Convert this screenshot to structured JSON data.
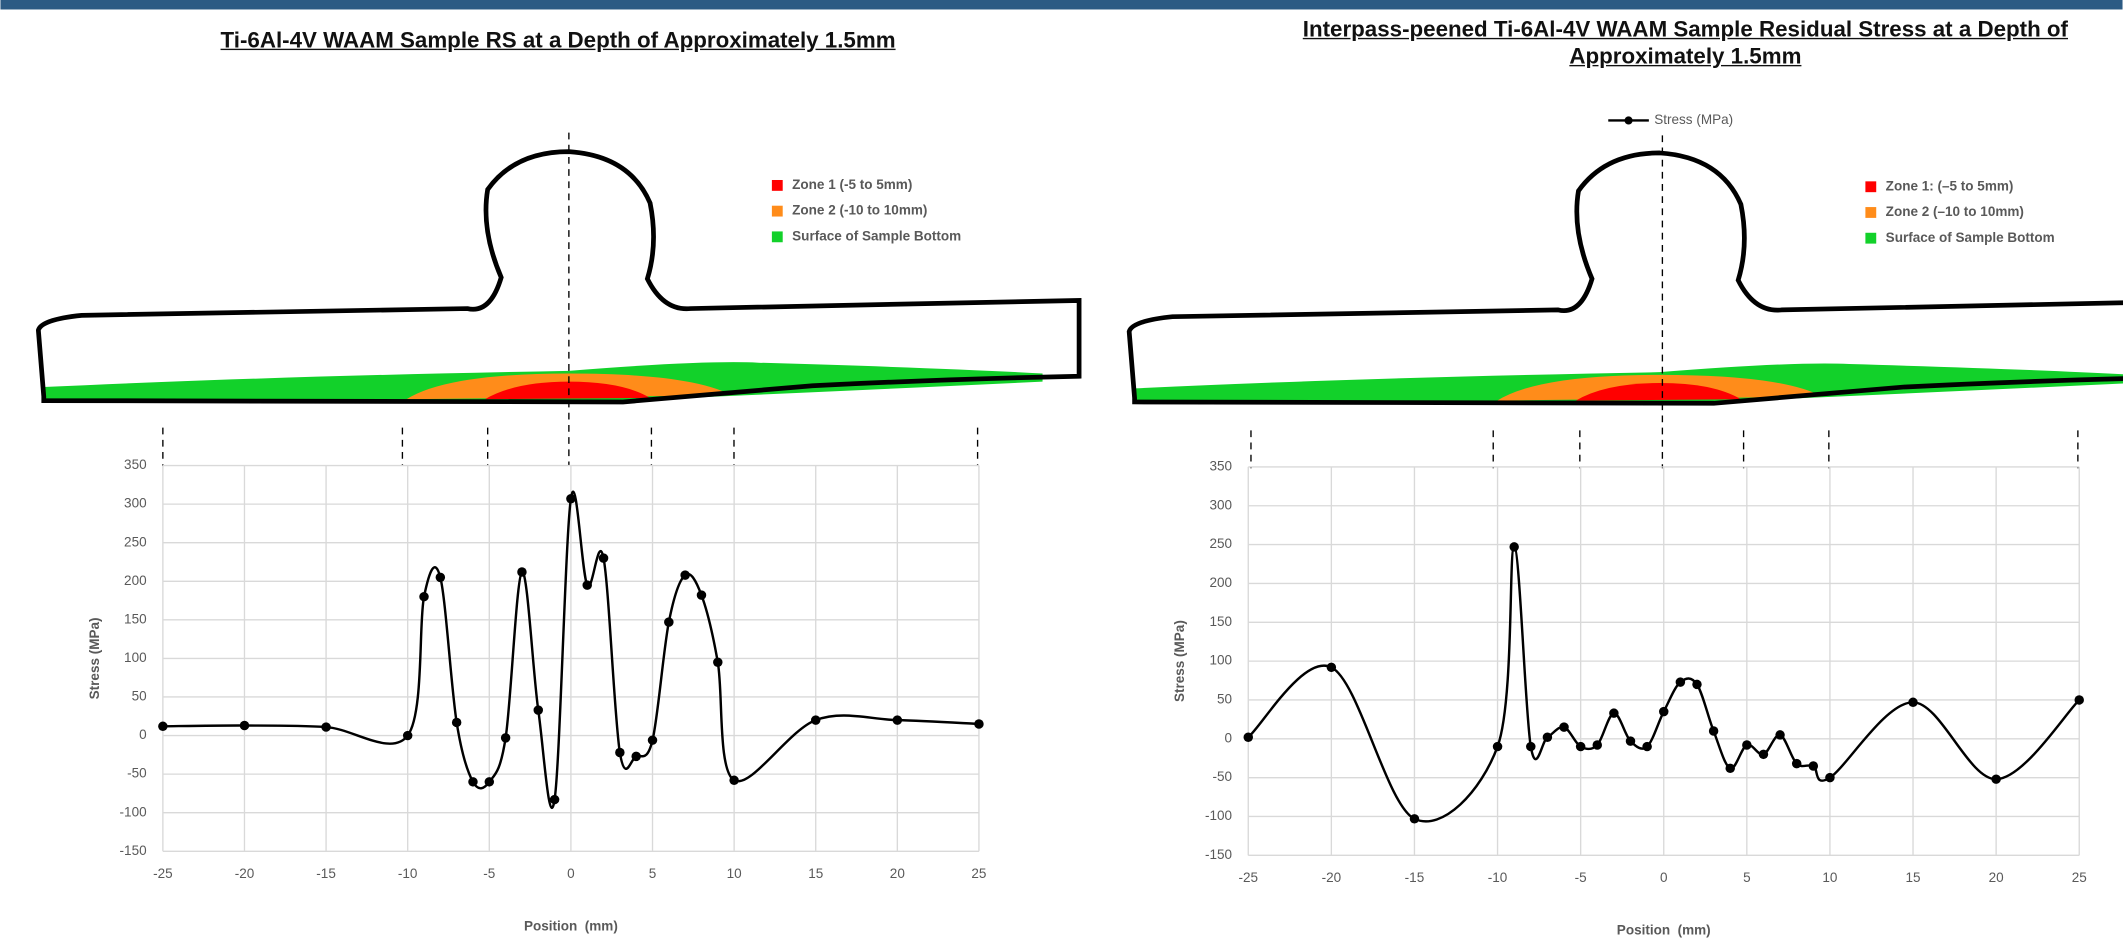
{
  "chart_data": [
    {
      "type": "line",
      "title": "Ti-6Al-4V WAAM Sample RS at a Depth of Approximately 1.5mm",
      "x_label": "Position  (mm)",
      "y_label": "Stress (MPa)",
      "x": [
        -25,
        -20,
        -15,
        -10,
        -9,
        -8,
        -7,
        -6,
        -5,
        -4,
        -3,
        -2,
        -1,
        0,
        1,
        2,
        3,
        4,
        5,
        6,
        7,
        8,
        9,
        10,
        15,
        20,
        25
      ],
      "values": [
        12,
        13,
        11,
        0,
        180,
        205,
        17,
        -60,
        -60,
        -3,
        212,
        33,
        -83,
        307,
        195,
        230,
        -22,
        -27,
        -6,
        147,
        208,
        182,
        95,
        -58,
        20,
        20,
        15
      ],
      "color": "#000000",
      "xlim": [
        -25,
        25
      ],
      "xticks": [
        -25,
        -20,
        -15,
        -10,
        -5,
        0,
        5,
        10,
        15,
        20,
        25
      ],
      "ylim": [
        -150,
        350
      ],
      "yticks": [
        -150,
        -100,
        -50,
        0,
        50,
        100,
        150,
        200,
        250,
        300,
        350
      ],
      "grid": true,
      "zones": [
        {
          "name": "Zone 1 (-5 to 5mm)",
          "color": "#ff0000"
        },
        {
          "name": "Zone 2 (-10 to 10mm)",
          "color": "#ff8c1a"
        },
        {
          "name": "Surface of Sample Bottom",
          "color": "#12d12a"
        }
      ]
    },
    {
      "type": "line",
      "title": "Interpass-peened Ti-6Al-4V WAAM Sample Residual Stress at a Depth of Approximately 1.5mm",
      "x_label": "Position  (mm)",
      "y_label": "Stress (MPa)",
      "x": [
        -25,
        -20,
        -15,
        -10,
        -9,
        -8,
        -7,
        -6,
        -5,
        -4,
        -3,
        -2,
        -1,
        0,
        1,
        2,
        3,
        4,
        5,
        6,
        7,
        8,
        9,
        10,
        15,
        20,
        25
      ],
      "series": [
        {
          "name": "Stress (MPa)",
          "color": "#000000",
          "values": [
            2,
            92,
            -103,
            -10,
            247,
            -10,
            2,
            15,
            -10,
            -8,
            33,
            -3,
            -10,
            35,
            73,
            70,
            10,
            -38,
            -8,
            -20,
            5,
            -32,
            -35,
            -50,
            47,
            -52,
            50
          ]
        }
      ],
      "xlim": [
        -25,
        25
      ],
      "xticks": [
        -25,
        -20,
        -15,
        -10,
        -5,
        0,
        5,
        10,
        15,
        20,
        25
      ],
      "ylim": [
        -150,
        350
      ],
      "yticks": [
        -150,
        -100,
        -50,
        0,
        50,
        100,
        150,
        200,
        250,
        300,
        350
      ],
      "grid": true,
      "zones": [
        {
          "name": "Zone 1: (–5 to 5mm)",
          "color": "#ff0000"
        },
        {
          "name": "Zone 2 (–10 to 10mm)",
          "color": "#ff8c1a"
        },
        {
          "name": "Surface of Sample Bottom",
          "color": "#12d12a"
        }
      ]
    }
  ]
}
